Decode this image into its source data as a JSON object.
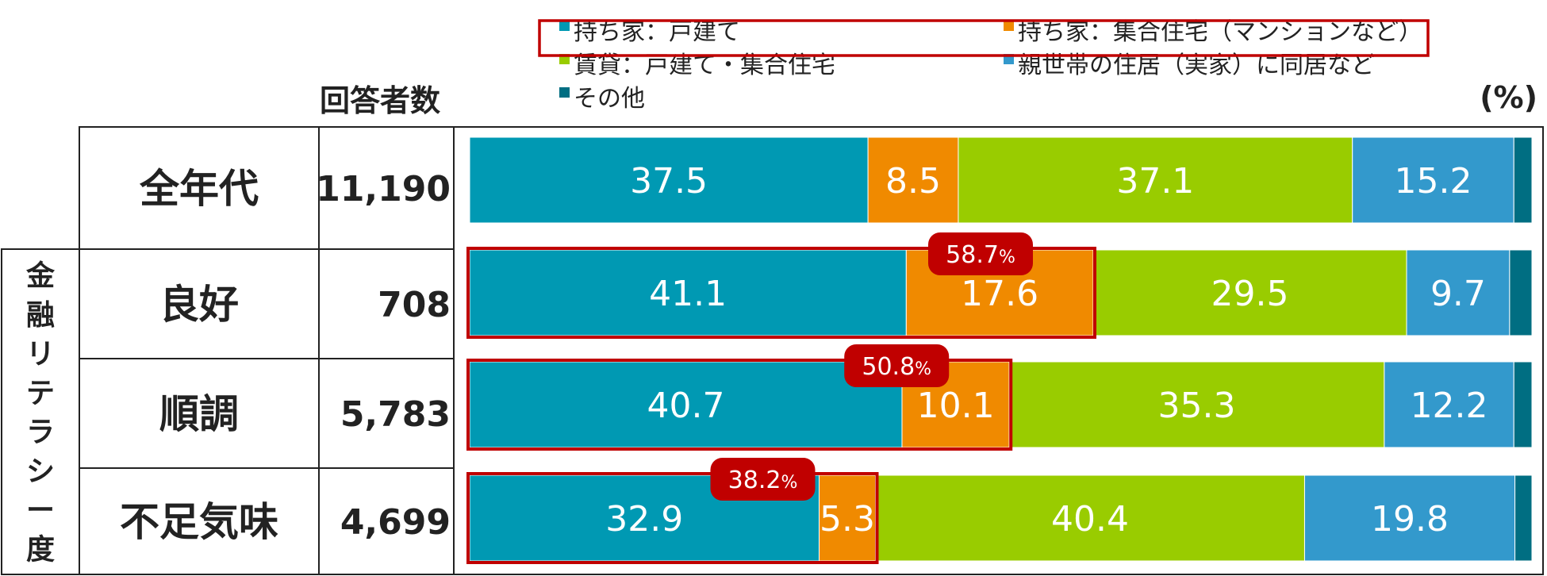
{
  "chart_data": {
    "type": "bar",
    "orientation": "horizontal",
    "stacked": true,
    "unit_label": "(%)",
    "count_header": "回答者数",
    "group_label": "金融リテラシー度",
    "categories": [
      "全年代",
      "良好",
      "順調",
      "不足気味"
    ],
    "counts": [
      "11,190",
      "708",
      "5,783",
      "4,699"
    ],
    "xlim": [
      0,
      100
    ],
    "legend_placement": "top",
    "series": [
      {
        "name": "持ち家：戸建て",
        "color": "#0099B3",
        "values": [
          37.5,
          41.1,
          40.7,
          32.9
        ],
        "labels": [
          "37.5",
          "41.1",
          "40.7",
          "32.9"
        ]
      },
      {
        "name": "持ち家：集合住宅（マンションなど）",
        "color": "#F08A00",
        "values": [
          8.5,
          17.6,
          10.1,
          5.3
        ],
        "labels": [
          "8.5",
          "17.6",
          "10.1",
          "5.3"
        ]
      },
      {
        "name": "賃貸：戸建て・集合住宅",
        "color": "#99CC00",
        "values": [
          37.1,
          29.5,
          35.3,
          40.4
        ],
        "labels": [
          "37.1",
          "29.5",
          "35.3",
          "40.4"
        ]
      },
      {
        "name": "親世帯の住居（実家）に同居など",
        "color": "#3399CC",
        "values": [
          15.2,
          9.7,
          12.2,
          19.8
        ],
        "labels": [
          "15.2",
          "9.7",
          "12.2",
          "19.8"
        ]
      },
      {
        "name": "その他",
        "color": "#006E82",
        "values": [
          1.7,
          2.1,
          1.7,
          1.6
        ],
        "labels": [
          "",
          "",
          "",
          ""
        ]
      }
    ],
    "annotations": [
      {
        "row": 1,
        "value_label": "58.7",
        "unit": "%",
        "value": 58.7
      },
      {
        "row": 2,
        "value_label": "50.8",
        "unit": "%",
        "value": 50.8
      },
      {
        "row": 3,
        "value_label": "38.2",
        "unit": "%",
        "value": 38.2
      }
    ],
    "highlight_color": "#C00000"
  }
}
